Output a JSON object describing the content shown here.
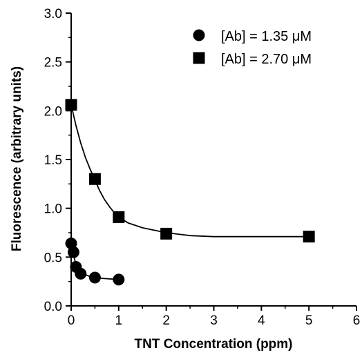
{
  "chart_data": {
    "type": "scatter",
    "title": "",
    "xlabel": "TNT  Concentration  (ppm)",
    "ylabel": "Fluorescence  (arbitrary  units)",
    "xlim": [
      0,
      6
    ],
    "ylim": [
      0,
      3.0
    ],
    "x_ticks": [
      "0",
      "1",
      "2",
      "3",
      "4",
      "5",
      "6"
    ],
    "y_ticks": [
      "0.0",
      "0.5",
      "1.0",
      "1.5",
      "2.0",
      "2.5",
      "3.0"
    ],
    "grid": false,
    "legend_position": "top-right",
    "series": [
      {
        "name": "[Ab] = 1.35 μM",
        "marker": "circle",
        "color": "#000000",
        "points": [
          {
            "x": 0.0,
            "y": 0.64
          },
          {
            "x": 0.05,
            "y": 0.55
          },
          {
            "x": 0.1,
            "y": 0.4
          },
          {
            "x": 0.2,
            "y": 0.33
          },
          {
            "x": 0.5,
            "y": 0.29
          },
          {
            "x": 1.0,
            "y": 0.27
          }
        ],
        "fit": [
          {
            "x": 0.0,
            "y": 0.66
          },
          {
            "x": 0.03,
            "y": 0.57
          },
          {
            "x": 0.06,
            "y": 0.5
          },
          {
            "x": 0.1,
            "y": 0.43
          },
          {
            "x": 0.15,
            "y": 0.38
          },
          {
            "x": 0.2,
            "y": 0.35
          },
          {
            "x": 0.3,
            "y": 0.32
          },
          {
            "x": 0.4,
            "y": 0.3
          },
          {
            "x": 0.5,
            "y": 0.29
          },
          {
            "x": 0.7,
            "y": 0.28
          },
          {
            "x": 1.0,
            "y": 0.27
          }
        ]
      },
      {
        "name": "[Ab] = 2.70 μM",
        "marker": "square",
        "color": "#000000",
        "points": [
          {
            "x": 0.0,
            "y": 2.06
          },
          {
            "x": 0.5,
            "y": 1.3
          },
          {
            "x": 1.0,
            "y": 0.91
          },
          {
            "x": 2.0,
            "y": 0.74
          },
          {
            "x": 5.0,
            "y": 0.71
          }
        ],
        "fit": [
          {
            "x": 0.0,
            "y": 2.06
          },
          {
            "x": 0.1,
            "y": 1.85
          },
          {
            "x": 0.2,
            "y": 1.67
          },
          {
            "x": 0.3,
            "y": 1.52
          },
          {
            "x": 0.4,
            "y": 1.4
          },
          {
            "x": 0.5,
            "y": 1.29
          },
          {
            "x": 0.6,
            "y": 1.18
          },
          {
            "x": 0.7,
            "y": 1.09
          },
          {
            "x": 0.8,
            "y": 1.02
          },
          {
            "x": 0.9,
            "y": 0.96
          },
          {
            "x": 1.0,
            "y": 0.91
          },
          {
            "x": 1.2,
            "y": 0.85
          },
          {
            "x": 1.5,
            "y": 0.8
          },
          {
            "x": 2.0,
            "y": 0.75
          },
          {
            "x": 2.5,
            "y": 0.72
          },
          {
            "x": 3.0,
            "y": 0.71
          },
          {
            "x": 4.0,
            "y": 0.71
          },
          {
            "x": 5.0,
            "y": 0.71
          }
        ]
      }
    ]
  }
}
